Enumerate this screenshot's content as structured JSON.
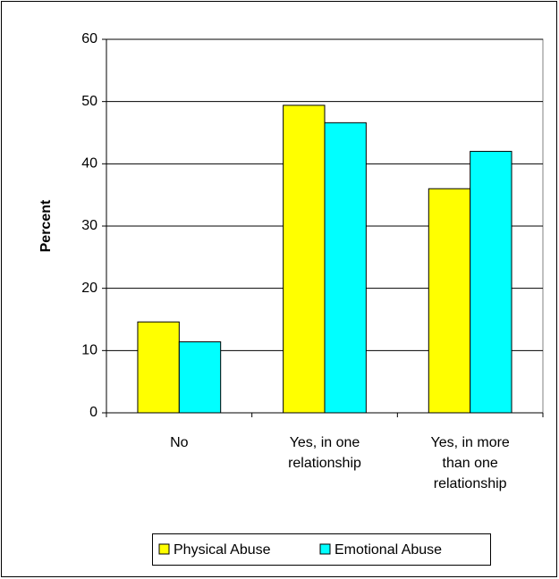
{
  "chart_data": {
    "type": "bar",
    "y_label": "Percent",
    "categories": [
      "No",
      "Yes, in one relationship",
      "Yes, in more than one relationship"
    ],
    "series": [
      {
        "name": "Physical Abuse",
        "color": "#ffff00",
        "values": [
          14.6,
          49.4,
          36
        ]
      },
      {
        "name": "Emotional Abuse",
        "color": "#00ffff",
        "values": [
          11.4,
          46.6,
          42
        ]
      }
    ],
    "ylim": [
      0,
      60
    ],
    "yticks": [
      0,
      10,
      20,
      30,
      40,
      50,
      60
    ],
    "grid": true
  }
}
